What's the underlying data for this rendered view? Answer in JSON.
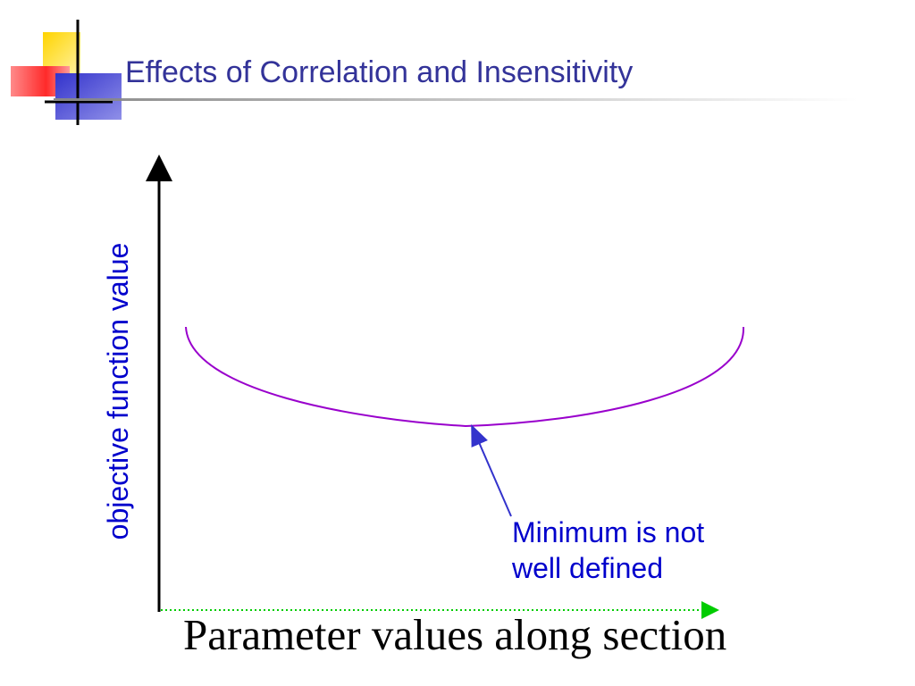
{
  "slide": {
    "title": "Effects of Correlation and Insensitivity"
  },
  "diagram": {
    "y_axis_label": "objective function value",
    "x_axis_label": "Parameter values along section",
    "annotation": {
      "line1": "Minimum is not",
      "line2": "well defined"
    },
    "curve_color": "#9900cc",
    "annotation_color": "#0000cc",
    "title_color": "#333399",
    "x_axis_color": "#00cc00"
  }
}
